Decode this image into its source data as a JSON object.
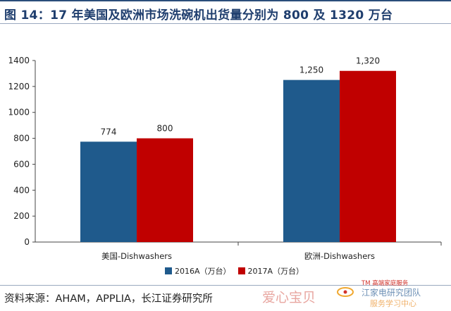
{
  "title": "图 14：17 年美国及欧洲市场洗碗机出货量分别为 800 及 1320 万台",
  "chart_data": {
    "type": "bar",
    "categories": [
      "美国-Dishwashers",
      "欧洲-Dishwashers"
    ],
    "series": [
      {
        "name": "2016A（万台）",
        "color": "#1f5a8c",
        "values": [
          774,
          1250
        ],
        "labels": [
          "774",
          "1,250"
        ]
      },
      {
        "name": "2017A（万台）",
        "color": "#c00000",
        "values": [
          800,
          1320
        ],
        "labels": [
          "800",
          "1,320"
        ]
      }
    ],
    "ylim": [
      0,
      1400
    ],
    "yticks": [
      0,
      200,
      400,
      600,
      800,
      1000,
      1200,
      1400
    ],
    "grid": false,
    "legend": "bottom-center"
  },
  "source": "资料来源：AHAM，APPLIA，长江证券研究所",
  "watermark": {
    "text1": "爱心宝贝",
    "tag": "TM 高端家庭服务",
    "team": "江家电研究团队",
    "sub": "服务学习中心"
  }
}
